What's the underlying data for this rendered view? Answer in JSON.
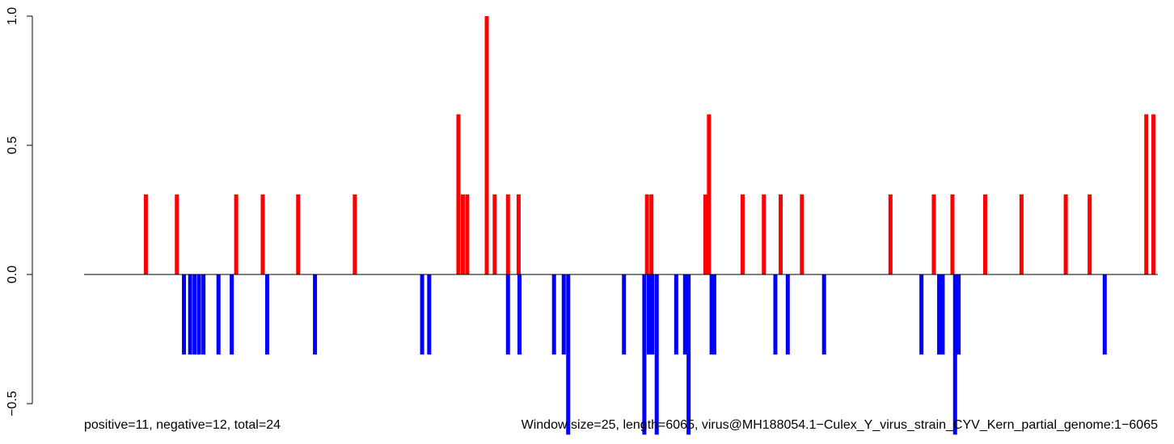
{
  "chart_data": {
    "type": "bar",
    "title": "",
    "xlabel": "",
    "ylabel": "",
    "ylim": [
      -0.55,
      1.0
    ],
    "yticks": [
      -0.5,
      0.0,
      0.5,
      1.0
    ],
    "ytick_labels": [
      "−0.5",
      "0.0",
      "0.5",
      "1.0"
    ],
    "xlim": [
      1,
      6065
    ],
    "grid": false,
    "legend": "none",
    "positive_color": "#FF0000",
    "negative_color": "#0000FF",
    "baseline_color": "#000000",
    "captions": {
      "left": "positive=11, negative=12, total=24",
      "right": "Window size=25, length=6065, virus@MH188054.1−Culex_Y_virus_strain_CYV_Kern_partial_genome:1−6065"
    },
    "bars": [
      {
        "x": 350,
        "y": 0.31
      },
      {
        "x": 525,
        "y": 0.31
      },
      {
        "x": 565,
        "y": -0.31
      },
      {
        "x": 600,
        "y": -0.31
      },
      {
        "x": 625,
        "y": -0.31
      },
      {
        "x": 650,
        "y": -0.31
      },
      {
        "x": 675,
        "y": -0.31
      },
      {
        "x": 760,
        "y": -0.31
      },
      {
        "x": 835,
        "y": -0.31
      },
      {
        "x": 860,
        "y": 0.31
      },
      {
        "x": 1010,
        "y": 0.31
      },
      {
        "x": 1035,
        "y": -0.31
      },
      {
        "x": 1210,
        "y": 0.31
      },
      {
        "x": 1305,
        "y": -0.31
      },
      {
        "x": 1530,
        "y": 0.31
      },
      {
        "x": 1910,
        "y": -0.31
      },
      {
        "x": 1950,
        "y": -0.31
      },
      {
        "x": 2115,
        "y": 0.62
      },
      {
        "x": 2140,
        "y": 0.31
      },
      {
        "x": 2165,
        "y": 0.31
      },
      {
        "x": 2275,
        "y": 1.0
      },
      {
        "x": 2320,
        "y": 0.31
      },
      {
        "x": 2395,
        "y": 0.31
      },
      {
        "x": 2395,
        "y": -0.31
      },
      {
        "x": 2455,
        "y": 0.31
      },
      {
        "x": 2460,
        "y": -0.31
      },
      {
        "x": 2655,
        "y": -0.31
      },
      {
        "x": 2710,
        "y": -0.31
      },
      {
        "x": 2735,
        "y": -0.62
      },
      {
        "x": 3050,
        "y": -0.31
      },
      {
        "x": 3165,
        "y": -0.62
      },
      {
        "x": 3180,
        "y": 0.31
      },
      {
        "x": 3190,
        "y": -0.31
      },
      {
        "x": 3205,
        "y": 0.31
      },
      {
        "x": 3210,
        "y": -0.31
      },
      {
        "x": 3235,
        "y": -0.62
      },
      {
        "x": 3345,
        "y": -0.31
      },
      {
        "x": 3395,
        "y": -0.31
      },
      {
        "x": 3415,
        "y": -0.62
      },
      {
        "x": 3510,
        "y": 0.31
      },
      {
        "x": 3530,
        "y": 0.62
      },
      {
        "x": 3545,
        "y": -0.31
      },
      {
        "x": 3560,
        "y": -0.31
      },
      {
        "x": 3720,
        "y": 0.31
      },
      {
        "x": 3840,
        "y": 0.31
      },
      {
        "x": 3905,
        "y": -0.31
      },
      {
        "x": 3935,
        "y": 0.31
      },
      {
        "x": 3975,
        "y": -0.31
      },
      {
        "x": 4055,
        "y": 0.31
      },
      {
        "x": 4180,
        "y": -0.31
      },
      {
        "x": 4555,
        "y": 0.31
      },
      {
        "x": 4730,
        "y": -0.31
      },
      {
        "x": 4800,
        "y": 0.31
      },
      {
        "x": 4830,
        "y": -0.31
      },
      {
        "x": 4850,
        "y": -0.31
      },
      {
        "x": 4905,
        "y": 0.31
      },
      {
        "x": 4920,
        "y": -0.62
      },
      {
        "x": 4940,
        "y": -0.31
      },
      {
        "x": 5090,
        "y": 0.31
      },
      {
        "x": 5295,
        "y": 0.31
      },
      {
        "x": 5545,
        "y": 0.31
      },
      {
        "x": 5680,
        "y": 0.31
      },
      {
        "x": 5765,
        "y": -0.31
      },
      {
        "x": 6000,
        "y": 0.62
      },
      {
        "x": 6040,
        "y": 0.62
      }
    ]
  }
}
